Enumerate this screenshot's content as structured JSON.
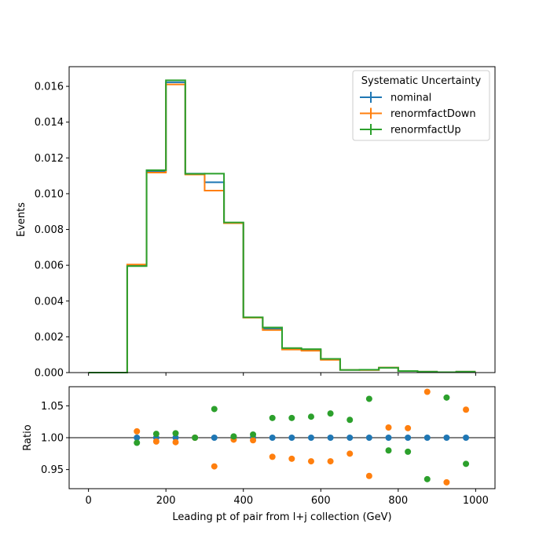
{
  "chart_data": [
    {
      "type": "line",
      "style": "step",
      "ylabel": "Events",
      "xlim": [
        -50,
        1050
      ],
      "ylim": [
        0,
        0.0171
      ],
      "yticks": [
        0.0,
        0.002,
        0.004,
        0.006,
        0.008,
        0.01,
        0.012,
        0.014,
        0.016
      ],
      "ytick_labels": [
        "0.000",
        "0.002",
        "0.004",
        "0.006",
        "0.008",
        "0.010",
        "0.012",
        "0.014",
        "0.016"
      ],
      "x_edges": [
        0,
        50,
        100,
        150,
        200,
        250,
        300,
        350,
        400,
        450,
        500,
        550,
        600,
        650,
        700,
        750,
        800,
        850,
        900,
        950,
        1000
      ],
      "legend": {
        "title": "Systematic Uncertainty",
        "placement": "top-right"
      },
      "series": [
        {
          "name": "nominal",
          "color": "#1f77b4",
          "values": [
            0,
            0,
            0.00598,
            0.01125,
            0.01623,
            0.01112,
            0.01064,
            0.00837,
            0.00308,
            0.00245,
            0.00133,
            0.00127,
            0.00074,
            0.00015,
            0.00015,
            0.00028,
            9e-05,
            5e-05,
            2e-05,
            5e-05
          ]
        },
        {
          "name": "renormfactDown",
          "color": "#ff7f0e",
          "values": [
            0,
            0,
            0.00604,
            0.01118,
            0.01611,
            0.01107,
            0.01017,
            0.00835,
            0.00307,
            0.00238,
            0.00129,
            0.00122,
            0.00071,
            0.00015,
            0.00014,
            0.00028,
            9e-05,
            5e-05,
            2e-05,
            5e-05
          ]
        },
        {
          "name": "renormfactUp",
          "color": "#2ca02c",
          "values": [
            0,
            0,
            0.00595,
            0.01131,
            0.01634,
            0.01111,
            0.01112,
            0.00839,
            0.00309,
            0.00252,
            0.00137,
            0.00131,
            0.00077,
            0.00015,
            0.00016,
            0.00027,
            9e-05,
            5e-05,
            2e-05,
            5e-05
          ]
        }
      ]
    },
    {
      "type": "scatter",
      "xlabel": "Leading pt of pair from l+j collection (GeV)",
      "ylabel": "Ratio",
      "xlim": [
        -50,
        1050
      ],
      "ylim": [
        0.92,
        1.08
      ],
      "yticks": [
        0.95,
        1.0,
        1.05
      ],
      "ytick_labels": [
        "0.95",
        "1.00",
        "1.05"
      ],
      "xticks": [
        0,
        200,
        400,
        600,
        800,
        1000
      ],
      "xtick_labels": [
        "0",
        "200",
        "400",
        "600",
        "800",
        "1000"
      ],
      "reference_line": 1.0,
      "x": [
        125,
        175,
        225,
        275,
        325,
        375,
        425,
        475,
        525,
        575,
        625,
        675,
        725,
        775,
        825,
        875,
        925,
        975
      ],
      "series": [
        {
          "name": "nominal",
          "color": "#1f77b4",
          "values": [
            1,
            1,
            1,
            1,
            1,
            1,
            1,
            1,
            1,
            1,
            1,
            1,
            1,
            1,
            1,
            1,
            1,
            1
          ]
        },
        {
          "name": "renormfactDown",
          "color": "#ff7f0e",
          "values": [
            1.01,
            0.994,
            0.993,
            1.0,
            0.955,
            0.997,
            0.996,
            0.97,
            0.967,
            0.963,
            0.963,
            0.975,
            0.94,
            1.016,
            1.015,
            1.072,
            0.93,
            1.044
          ]
        },
        {
          "name": "renormfactUp",
          "color": "#2ca02c",
          "values": [
            0.992,
            1.006,
            1.007,
            1.0,
            1.045,
            1.002,
            1.005,
            1.031,
            1.031,
            1.033,
            1.038,
            1.028,
            1.061,
            0.98,
            0.978,
            0.935,
            1.063,
            0.959
          ]
        }
      ]
    }
  ]
}
